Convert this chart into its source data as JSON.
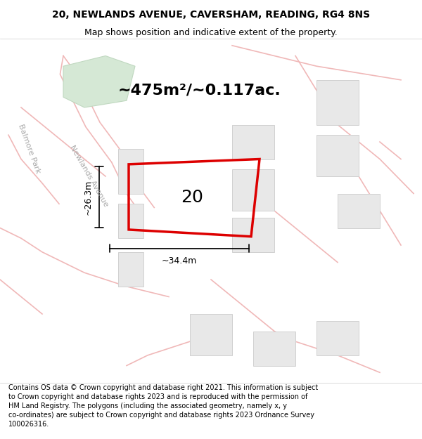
{
  "title": "20, NEWLANDS AVENUE, CAVERSHAM, READING, RG4 8NS",
  "subtitle": "Map shows position and indicative extent of the property.",
  "area_text": "~475m²/~0.117ac.",
  "label_20": "20",
  "dim_width": "~34.4m",
  "dim_height": "~26.3m",
  "bg_color": "#f8f8f8",
  "map_bg": "#f5f0f0",
  "road_color": "#f0b8b8",
  "building_fill": "#e8e8e8",
  "building_stroke": "#d0d0d0",
  "green_fill": "#d5e8d5",
  "green_stroke": "#c0d8c0",
  "plot_stroke": "#dd0000",
  "plot_lw": 2.5,
  "footer_lines": "Contains OS data © Crown copyright and database right 2021. This information is subject\nto Crown copyright and database rights 2023 and is reproduced with the permission of\nHM Land Registry. The polygons (including the associated geometry, namely x, y\nco-ordinates) are subject to Crown copyright and database rights 2023 Ordnance Survey\n100026316.",
  "road_label_balmore": "Balmore Park",
  "road_label_newlands": "Newlands Avenue",
  "title_fontsize": 10,
  "subtitle_fontsize": 9,
  "area_fontsize": 16,
  "label_fontsize": 18,
  "dim_fontsize": 9,
  "road_label_fontsize": 8,
  "footer_fontsize": 7
}
